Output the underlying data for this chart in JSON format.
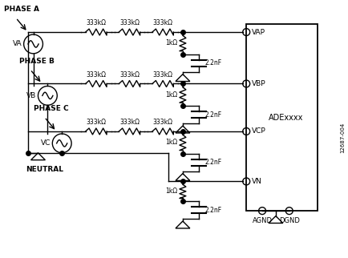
{
  "title": "",
  "fig_width": 4.35,
  "fig_height": 3.22,
  "dpi": 100,
  "bg_color": "#ffffff",
  "line_color": "#000000",
  "line_width": 1.0,
  "phases": [
    "PHASE A",
    "PHASE B",
    "PHASE C"
  ],
  "resistor_labels_top": [
    "333kΩ",
    "333kΩ",
    "333kΩ"
  ],
  "resistor_label_1k": "1kΩ",
  "cap_label": "2.2nF",
  "ic_label": "ADExxxx",
  "fig_label": "12687-004",
  "neutral_label": "NEUTRAL"
}
